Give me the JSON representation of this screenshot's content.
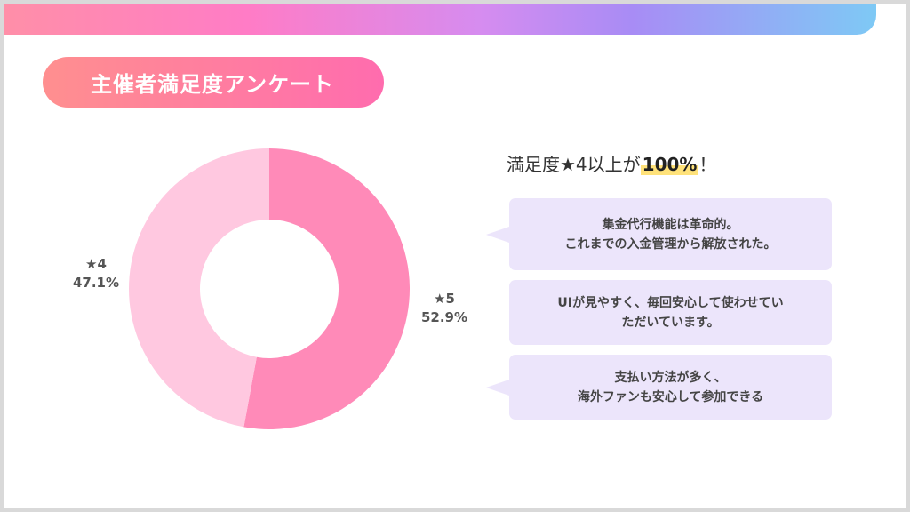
{
  "title": "主催者満足度アンケート",
  "headline": {
    "prefix": "満足度★4以上が",
    "highlight": "100%",
    "suffix": "！"
  },
  "comments": [
    "集金代行機能は革命的。\nこれまでの入金管理から解放された。",
    "UIが見やすく、毎回安心して使わせてい\nただいています。",
    "支払い方法が多く、\n海外ファンも安心して参加できる"
  ],
  "colors": {
    "star5": "#ff8ab8",
    "star4": "#ffc8e0",
    "bubble": "#ece5fb",
    "highlight": "#ffe27a"
  },
  "chart_data": {
    "type": "pie",
    "donut": true,
    "slices": [
      {
        "label": "★5",
        "value": 52.9,
        "display": "52.9%",
        "color": "#ff8ab8"
      },
      {
        "label": "★4",
        "value": 47.1,
        "display": "47.1%",
        "color": "#ffc8e0"
      }
    ]
  }
}
